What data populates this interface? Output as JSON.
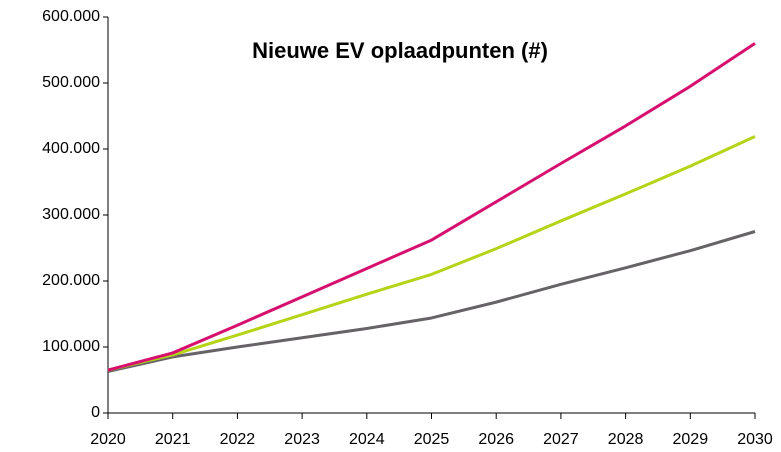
{
  "chart_data": {
    "type": "line",
    "title": "Nieuwe EV oplaadpunten (#)",
    "x": [
      2020,
      2021,
      2022,
      2023,
      2024,
      2025,
      2026,
      2027,
      2028,
      2029,
      2030
    ],
    "series": [
      {
        "color": "#d6106e",
        "values": [
          65000,
          91000,
          133000,
          176000,
          219000,
          262000,
          320000,
          378000,
          435000,
          495000,
          560000
        ]
      },
      {
        "color": "#b5d317",
        "values": [
          65000,
          88000,
          118000,
          149000,
          180000,
          210000,
          249000,
          291000,
          332000,
          374000,
          419000
        ]
      },
      {
        "color": "#666366",
        "values": [
          63000,
          85000,
          100000,
          114000,
          128000,
          144000,
          168000,
          195000,
          220000,
          246000,
          275000
        ]
      }
    ],
    "xlim": [
      2020,
      2030
    ],
    "xticks": [
      2020,
      2021,
      2022,
      2023,
      2024,
      2025,
      2026,
      2027,
      2028,
      2029,
      2030
    ],
    "ylim": [
      0,
      600000
    ],
    "yticks": [
      0,
      {
        "value": 100000,
        "label": "100.000"
      },
      {
        "value": 200000,
        "label": "200.000"
      },
      {
        "value": 300000,
        "label": "300.000"
      },
      {
        "value": 400000,
        "label": "400.000"
      },
      {
        "value": 500000,
        "label": "500.000"
      },
      {
        "value": 600000,
        "label": "600.000"
      }
    ],
    "grid": false
  }
}
